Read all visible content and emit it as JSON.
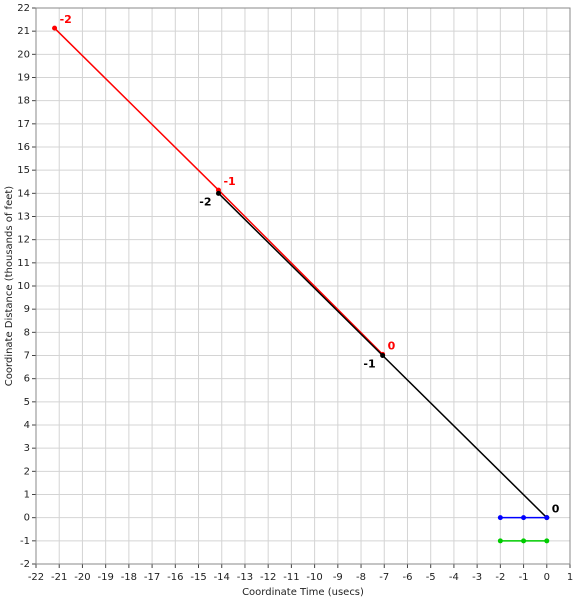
{
  "chart_data": {
    "type": "line",
    "x_label": "Coordinate Time (usecs)",
    "y_label": "Coordinate Distance (thousands of feet)",
    "xlim": [
      -22,
      1
    ],
    "ylim": [
      -2,
      22
    ],
    "xticks": [
      -22,
      -21,
      -20,
      -19,
      -18,
      -17,
      -16,
      -15,
      -14,
      -13,
      -12,
      -11,
      -10,
      -9,
      -8,
      -7,
      -6,
      -5,
      -4,
      -3,
      -2,
      -1,
      0,
      1
    ],
    "yticks": [
      -2,
      -1,
      0,
      1,
      2,
      3,
      4,
      5,
      6,
      7,
      8,
      9,
      10,
      11,
      12,
      13,
      14,
      15,
      16,
      17,
      18,
      19,
      20,
      21,
      22
    ],
    "grid": true,
    "series": [
      {
        "color": "#ff0000",
        "x": [
          -21.2,
          -14.14,
          -7.07
        ],
        "values": [
          21.13,
          14.14,
          7.05
        ],
        "labels": [
          "-2",
          "-1",
          "0"
        ]
      },
      {
        "color": "#000000",
        "x": [
          -14.14,
          -7.07,
          0
        ],
        "values": [
          14.0,
          7.0,
          0
        ],
        "labels": [
          "-2",
          "-1",
          "0"
        ]
      },
      {
        "color": "#0000ff",
        "x": [
          -2,
          -1,
          0
        ],
        "values": [
          0,
          0,
          0
        ]
      },
      {
        "color": "#00cc00",
        "x": [
          -2,
          -1,
          0
        ],
        "values": [
          -1,
          -1,
          -1
        ]
      }
    ]
  }
}
